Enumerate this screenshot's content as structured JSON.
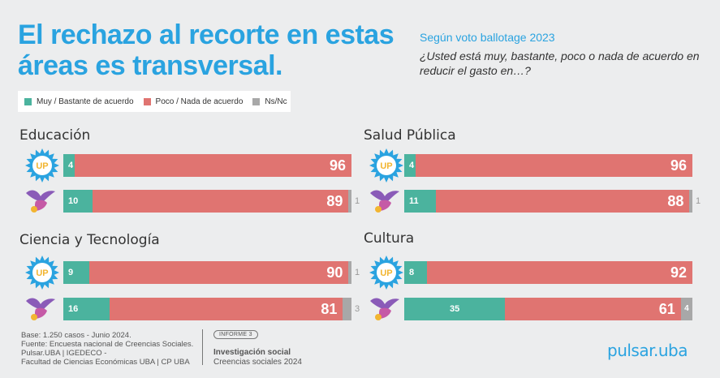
{
  "title": "El rechazo al recorte en estas áreas es transversal.",
  "subtitle": {
    "head": "Según voto ballotage 2023",
    "question": "¿Usted está muy, bastante, poco o nada de acuerdo en reducir el gasto en…?"
  },
  "colors": {
    "agree": "#4bb39e",
    "disagree": "#e07471",
    "ns": "#a8a8a8",
    "accent": "#2aa3e0"
  },
  "legend": [
    {
      "label": "Muy / Bastante de acuerdo",
      "color": "#4bb39e"
    },
    {
      "label": "Poco / Nada de acuerdo",
      "color": "#e07471"
    },
    {
      "label": "Ns/Nc",
      "color": "#a8a8a8"
    }
  ],
  "chart_data": [
    {
      "type": "bar",
      "title": "Educación",
      "orientation": "horizontal-stacked",
      "series": [
        {
          "name": "Muy / Bastante de acuerdo",
          "values": [
            4,
            10
          ]
        },
        {
          "name": "Poco / Nada de acuerdo",
          "values": [
            96,
            89
          ]
        },
        {
          "name": "Ns/Nc",
          "values": [
            0,
            1
          ]
        }
      ],
      "rows": [
        {
          "icon": "up-sun-icon",
          "agree": 4,
          "disagree": 96,
          "ns": 0
        },
        {
          "icon": "lla-lion-bird-icon",
          "agree": 10,
          "disagree": 89,
          "ns": 1
        }
      ]
    },
    {
      "type": "bar",
      "title": "Salud Pública",
      "orientation": "horizontal-stacked",
      "series": [
        {
          "name": "Muy / Bastante de acuerdo",
          "values": [
            4,
            11
          ]
        },
        {
          "name": "Poco / Nada de acuerdo",
          "values": [
            96,
            88
          ]
        },
        {
          "name": "Ns/Nc",
          "values": [
            0,
            1
          ]
        }
      ],
      "rows": [
        {
          "icon": "up-sun-icon",
          "agree": 4,
          "disagree": 96,
          "ns": 0
        },
        {
          "icon": "lla-lion-bird-icon",
          "agree": 11,
          "disagree": 88,
          "ns": 1
        }
      ]
    },
    {
      "type": "bar",
      "title": "Ciencia y Tecnología",
      "orientation": "horizontal-stacked",
      "series": [
        {
          "name": "Muy / Bastante de acuerdo",
          "values": [
            9,
            16
          ]
        },
        {
          "name": "Poco / Nada de acuerdo",
          "values": [
            90,
            81
          ]
        },
        {
          "name": "Ns/Nc",
          "values": [
            1,
            3
          ]
        }
      ],
      "rows": [
        {
          "icon": "up-sun-icon",
          "agree": 9,
          "disagree": 90,
          "ns": 1
        },
        {
          "icon": "lla-lion-bird-icon",
          "agree": 16,
          "disagree": 81,
          "ns": 3
        }
      ]
    },
    {
      "type": "bar",
      "title": "Cultura",
      "orientation": "horizontal-stacked",
      "series": [
        {
          "name": "Muy / Bastante de acuerdo",
          "values": [
            8,
            35
          ]
        },
        {
          "name": "Poco / Nada de acuerdo",
          "values": [
            92,
            61
          ]
        },
        {
          "name": "Ns/Nc",
          "values": [
            0,
            4
          ]
        }
      ],
      "rows": [
        {
          "icon": "up-sun-icon",
          "agree": 8,
          "disagree": 92,
          "ns": 0
        },
        {
          "icon": "lla-lion-bird-icon",
          "agree": 35,
          "disagree": 61,
          "ns": 4
        }
      ]
    }
  ],
  "up_badge_text": "UP",
  "footer": {
    "line1": "Base: 1.250 casos - Junio 2024.",
    "line2": "Fuente: Encuesta nacional de Creencias Sociales.",
    "line3": "Pulsar.UBA | IGEDECO -",
    "line4": "Facultad de Ciencias Económicas UBA | CP UBA",
    "informe": "INFORME 3",
    "inv_title": "Investigación social",
    "inv_sub": "Creencias sociales 2024",
    "brand": "pulsar.uba"
  }
}
